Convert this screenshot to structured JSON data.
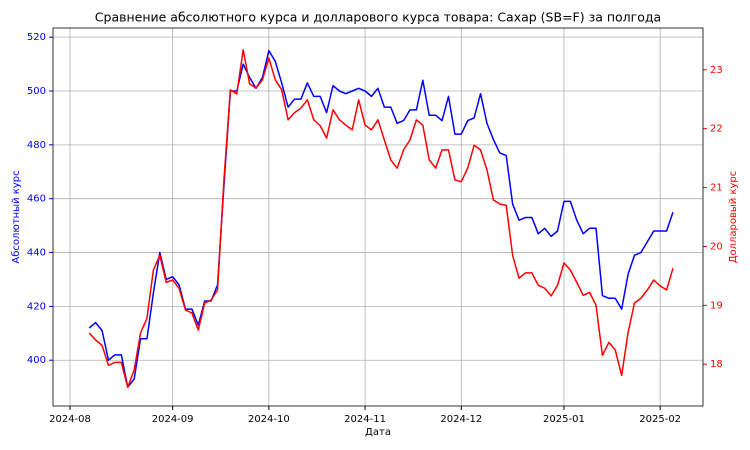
{
  "chart_data": {
    "type": "line",
    "title": "Сравнение абсолютного курса и долларового курса товара: Сахар (SB=F) за полгода",
    "x_label": "Дата",
    "y_label": "Абсолютный курс",
    "y2_label": "Долларовый курс",
    "categories": [
      "2024-08",
      null,
      null,
      null,
      null,
      null,
      null,
      null,
      null,
      null,
      null,
      null,
      null,
      null,
      null,
      null,
      "2024-09",
      null,
      null,
      null,
      null,
      null,
      null,
      null,
      null,
      null,
      null,
      null,
      null,
      null,
      null,
      "2024-10",
      null,
      null,
      null,
      null,
      null,
      null,
      null,
      null,
      null,
      null,
      null,
      null,
      null,
      null,
      "2024-11",
      null,
      null,
      null,
      null,
      null,
      null,
      null,
      null,
      null,
      null,
      null,
      null,
      null,
      null,
      "2024-12",
      null,
      null,
      null,
      null,
      null,
      null,
      null,
      null,
      null,
      null,
      null,
      null,
      null,
      null,
      null,
      "2025-01",
      null,
      null,
      null,
      null,
      null,
      null,
      null,
      null,
      null,
      null,
      null,
      null,
      null,
      null,
      "2025-02",
      null,
      null
    ],
    "series": [
      {
        "name": "Абсолютный курс",
        "color": "#0000ff",
        "values": [
          null,
          null,
          null,
          412,
          414,
          411,
          400,
          402,
          402,
          390,
          393,
          408,
          408,
          425,
          440,
          430,
          431,
          428,
          419,
          419,
          413,
          422,
          422,
          428,
          465,
          500,
          500,
          510,
          505,
          501,
          505,
          515,
          511,
          503,
          494,
          497,
          497,
          503,
          498,
          498,
          492,
          502,
          500,
          499,
          500,
          501,
          500,
          498,
          501,
          494,
          494,
          488,
          489,
          493,
          493,
          504,
          491,
          491,
          489,
          498,
          484,
          484,
          489,
          490,
          499,
          488,
          482,
          477,
          476,
          458,
          452,
          453,
          453,
          447,
          449,
          446,
          448,
          459,
          459,
          452,
          447,
          449,
          449,
          424,
          423,
          423,
          419,
          432,
          439,
          440,
          444,
          448,
          448,
          448,
          455
        ]
      },
      {
        "name": "Долларовый курс",
        "color": "#ff0000",
        "axis": "y2",
        "values": [
          null,
          null,
          null,
          18.53,
          18.41,
          18.32,
          17.98,
          18.03,
          18.03,
          17.61,
          17.9,
          18.53,
          18.78,
          19.6,
          19.85,
          19.39,
          19.43,
          19.29,
          18.92,
          18.87,
          18.58,
          19.04,
          19.09,
          19.26,
          21.13,
          22.66,
          22.59,
          23.34,
          22.76,
          22.69,
          22.83,
          23.2,
          22.83,
          22.66,
          22.15,
          22.27,
          22.35,
          22.49,
          22.15,
          22.05,
          21.84,
          22.32,
          22.15,
          22.06,
          21.98,
          22.49,
          22.06,
          21.98,
          22.15,
          21.81,
          21.47,
          21.33,
          21.64,
          21.81,
          22.15,
          22.06,
          21.47,
          21.33,
          21.64,
          21.64,
          21.13,
          21.1,
          21.33,
          21.72,
          21.64,
          21.3,
          20.79,
          20.72,
          20.7,
          19.85,
          19.46,
          19.55,
          19.55,
          19.34,
          19.29,
          19.16,
          19.34,
          19.72,
          19.6,
          19.39,
          19.17,
          19.22,
          19.0,
          18.15,
          18.37,
          18.24,
          17.81,
          18.54,
          19.04,
          19.12,
          19.26,
          19.43,
          19.33,
          19.26,
          19.63
        ]
      }
    ],
    "ylim": [
      383,
      523.4
    ],
    "yticks": [
      400,
      420,
      440,
      460,
      480,
      500,
      520
    ],
    "y2lim": [
      17.29,
      23.71
    ],
    "y2ticks": [
      18,
      19,
      20,
      21,
      22,
      23
    ],
    "grid": true
  }
}
